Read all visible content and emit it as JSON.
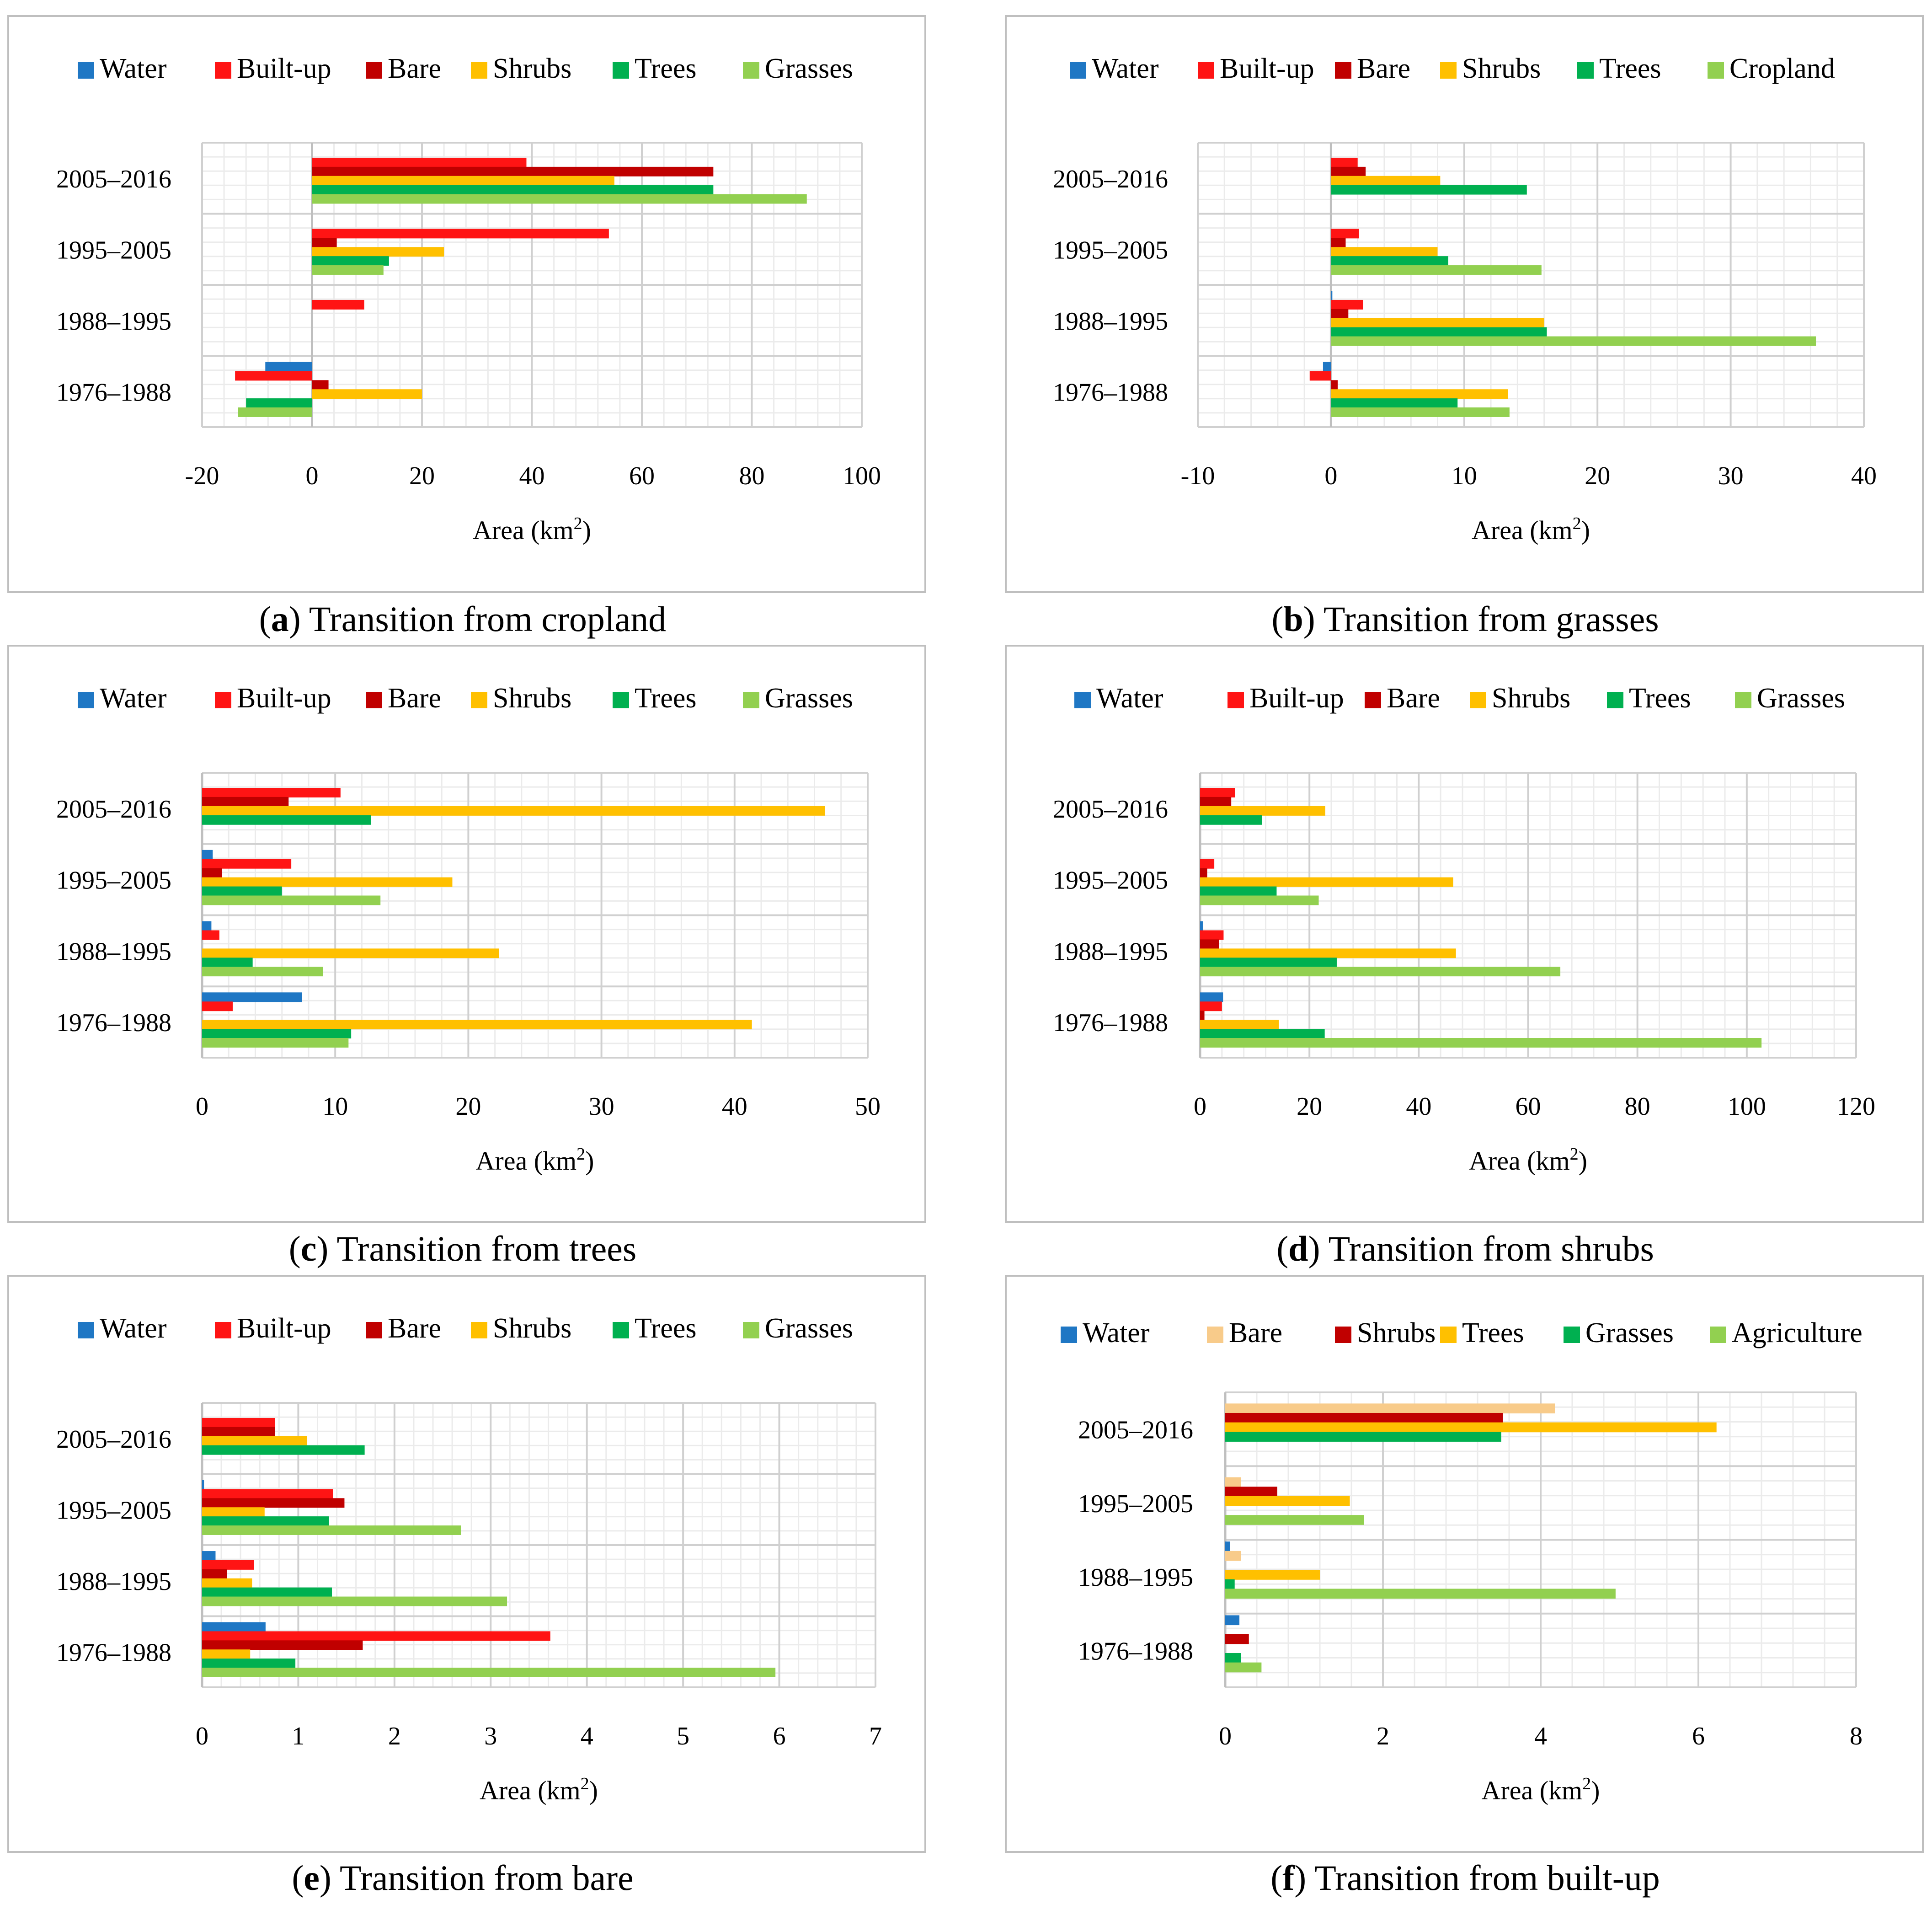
{
  "colors": {
    "Water": "#1F77C4",
    "Built-up": "#FF1414",
    "Bare": "#C00000",
    "Shrubs": "#FFC000",
    "Trees": "#00B050",
    "Grasses": "#92D050",
    "Cropland": "#92D050",
    "Agriculture": "#92D050",
    "BareLight": "#F8CB8A"
  },
  "axis_title_main": "Area (km",
  "axis_title_sup": "2",
  "axis_title_end": ")",
  "chart_data": [
    {
      "type": "bar",
      "orientation": "horizontal",
      "caption_letter": "a",
      "caption_text": ") Transition from cropland",
      "caption_open": "(",
      "xlabel": "Area (km2)",
      "xlim": [
        -20,
        100
      ],
      "xticks": [
        "-20",
        "0",
        "20",
        "40",
        "60",
        "80",
        "100"
      ],
      "categories": [
        "2005–2016",
        "1995–2005",
        "1988–1995",
        "1976–1988"
      ],
      "series": [
        {
          "name": "Water",
          "color_key": "Water",
          "values": [
            0,
            0,
            0,
            -8.5
          ]
        },
        {
          "name": "Built-up",
          "color_key": "Built-up",
          "values": [
            39,
            54,
            9.5,
            -14
          ]
        },
        {
          "name": "Bare",
          "color_key": "Bare",
          "values": [
            73,
            4.5,
            0,
            3
          ]
        },
        {
          "name": "Shrubs",
          "color_key": "Shrubs",
          "values": [
            55,
            24,
            0,
            20
          ]
        },
        {
          "name": "Trees",
          "color_key": "Trees",
          "values": [
            73,
            14,
            0,
            -12
          ]
        },
        {
          "name": "Grasses",
          "color_key": "Grasses",
          "values": [
            90,
            13,
            0,
            -13.5
          ]
        }
      ]
    },
    {
      "type": "bar",
      "orientation": "horizontal",
      "caption_letter": "b",
      "caption_text": ") Transition from grasses",
      "caption_open": "(",
      "xlabel": "Area (km2)",
      "xlim": [
        -10,
        40
      ],
      "xticks": [
        "-10",
        "0",
        "10",
        "20",
        "30",
        "40"
      ],
      "categories": [
        "2005–2016",
        "1995–2005",
        "1988–1995",
        "1976–1988"
      ],
      "series": [
        {
          "name": "Water",
          "color_key": "Water",
          "values": [
            0,
            0,
            0.1,
            -0.6
          ]
        },
        {
          "name": "Built-up",
          "color_key": "Built-up",
          "values": [
            2,
            2.1,
            2.4,
            -1.6
          ]
        },
        {
          "name": "Bare",
          "color_key": "Bare",
          "values": [
            2.6,
            1.1,
            1.3,
            0.5
          ]
        },
        {
          "name": "Shrubs",
          "color_key": "Shrubs",
          "values": [
            8.2,
            8,
            16,
            13.3
          ]
        },
        {
          "name": "Trees",
          "color_key": "Trees",
          "values": [
            14.7,
            8.8,
            16.2,
            9.5
          ]
        },
        {
          "name": "Cropland",
          "color_key": "Cropland",
          "values": [
            0,
            15.8,
            36.4,
            13.4
          ]
        }
      ]
    },
    {
      "type": "bar",
      "orientation": "horizontal",
      "caption_letter": "c",
      "caption_text": ") Transition from trees",
      "caption_open": "(",
      "xlabel": "Area (km2)",
      "xlim": [
        0,
        50
      ],
      "xticks": [
        "0",
        "10",
        "20",
        "30",
        "40",
        "50"
      ],
      "categories": [
        "2005–2016",
        "1995–2005",
        "1988–1995",
        "1976–1988"
      ],
      "series": [
        {
          "name": "Water",
          "color_key": "Water",
          "values": [
            0,
            0.8,
            0.7,
            7.5
          ]
        },
        {
          "name": "Built-up",
          "color_key": "Built-up",
          "values": [
            10.4,
            6.7,
            1.3,
            2.3
          ]
        },
        {
          "name": "Bare",
          "color_key": "Bare",
          "values": [
            6.5,
            1.5,
            0,
            0
          ]
        },
        {
          "name": "Shrubs",
          "color_key": "Shrubs",
          "values": [
            46.8,
            18.8,
            22.3,
            41.3
          ]
        },
        {
          "name": "Trees",
          "color_key": "Trees",
          "values": [
            12.7,
            6,
            3.8,
            11.2
          ]
        },
        {
          "name": "Grasses",
          "color_key": "Grasses",
          "values": [
            0,
            13.4,
            9.1,
            11
          ]
        }
      ]
    },
    {
      "type": "bar",
      "orientation": "horizontal",
      "caption_letter": "d",
      "caption_text": ") Transition from shrubs",
      "caption_open": "(",
      "xlabel": "Area (km2)",
      "xlim": [
        0,
        120
      ],
      "xticks": [
        "0",
        "20",
        "40",
        "60",
        "80",
        "100",
        "120"
      ],
      "categories": [
        "2005–2016",
        "1995–2005",
        "1988–1995",
        "1976–1988"
      ],
      "series": [
        {
          "name": "Water",
          "color_key": "Water",
          "values": [
            0,
            0,
            0.5,
            4.2
          ]
        },
        {
          "name": "Built-up",
          "color_key": "Built-up",
          "values": [
            6.4,
            2.6,
            4.3,
            4
          ]
        },
        {
          "name": "Bare",
          "color_key": "Bare",
          "values": [
            5.7,
            1.3,
            3.5,
            0.8
          ]
        },
        {
          "name": "Shrubs",
          "color_key": "Shrubs",
          "values": [
            22.9,
            46.3,
            46.8,
            14.4
          ]
        },
        {
          "name": "Trees",
          "color_key": "Trees",
          "values": [
            11.3,
            14,
            25,
            22.8
          ]
        },
        {
          "name": "Grasses",
          "color_key": "Grasses",
          "values": [
            0,
            21.7,
            65.9,
            102.7
          ]
        }
      ]
    },
    {
      "type": "bar",
      "orientation": "horizontal",
      "caption_letter": "e",
      "caption_text": ") Transition from bare",
      "caption_open": "(",
      "xlabel": "Area (km2)",
      "xlim": [
        0,
        7
      ],
      "xticks": [
        "0",
        "1",
        "2",
        "3",
        "4",
        "5",
        "6",
        "7"
      ],
      "categories": [
        "2005–2016",
        "1995–2005",
        "1988–1995",
        "1976–1988"
      ],
      "series": [
        {
          "name": "Water",
          "color_key": "Water",
          "values": [
            0,
            0.02,
            0.14,
            0.66
          ]
        },
        {
          "name": "Built-up",
          "color_key": "Built-up",
          "values": [
            0.76,
            1.36,
            0.54,
            3.62
          ]
        },
        {
          "name": "Bare",
          "color_key": "Bare",
          "values": [
            0.76,
            1.48,
            0.26,
            1.67
          ]
        },
        {
          "name": "Shrubs",
          "color_key": "Shrubs",
          "values": [
            1.09,
            0.65,
            0.52,
            0.5
          ]
        },
        {
          "name": "Trees",
          "color_key": "Trees",
          "values": [
            1.69,
            1.32,
            1.35,
            0.97
          ]
        },
        {
          "name": "Grasses",
          "color_key": "Grasses",
          "values": [
            0,
            2.69,
            3.17,
            5.96
          ]
        }
      ]
    },
    {
      "type": "bar",
      "orientation": "horizontal",
      "caption_letter": "f",
      "caption_text": ") Transition from built-up",
      "caption_open": "(",
      "xlabel": "Area (km2)",
      "xlim": [
        0,
        8
      ],
      "xticks": [
        "0",
        "2",
        "4",
        "6",
        "8"
      ],
      "categories": [
        "2005–2016",
        "1995–2005",
        "1988–1995",
        "1976–1988"
      ],
      "series": [
        {
          "name": "Water",
          "color_key": "Water",
          "values": [
            0,
            0,
            0.06,
            0.18
          ]
        },
        {
          "name": "Bare",
          "color_key": "BareLight",
          "values": [
            4.18,
            0.2,
            0.2,
            0
          ]
        },
        {
          "name": "Shrubs",
          "color_key": "Bare",
          "values": [
            3.52,
            0.66,
            0,
            0.3
          ]
        },
        {
          "name": "Trees",
          "color_key": "Shrubs",
          "values": [
            6.23,
            1.58,
            1.2,
            0
          ]
        },
        {
          "name": "Grasses",
          "color_key": "Trees",
          "values": [
            3.5,
            0,
            0.12,
            0.2
          ]
        },
        {
          "name": "Agriculture",
          "color_key": "Agriculture",
          "values": [
            0,
            1.76,
            4.95,
            0.46
          ]
        }
      ]
    }
  ]
}
